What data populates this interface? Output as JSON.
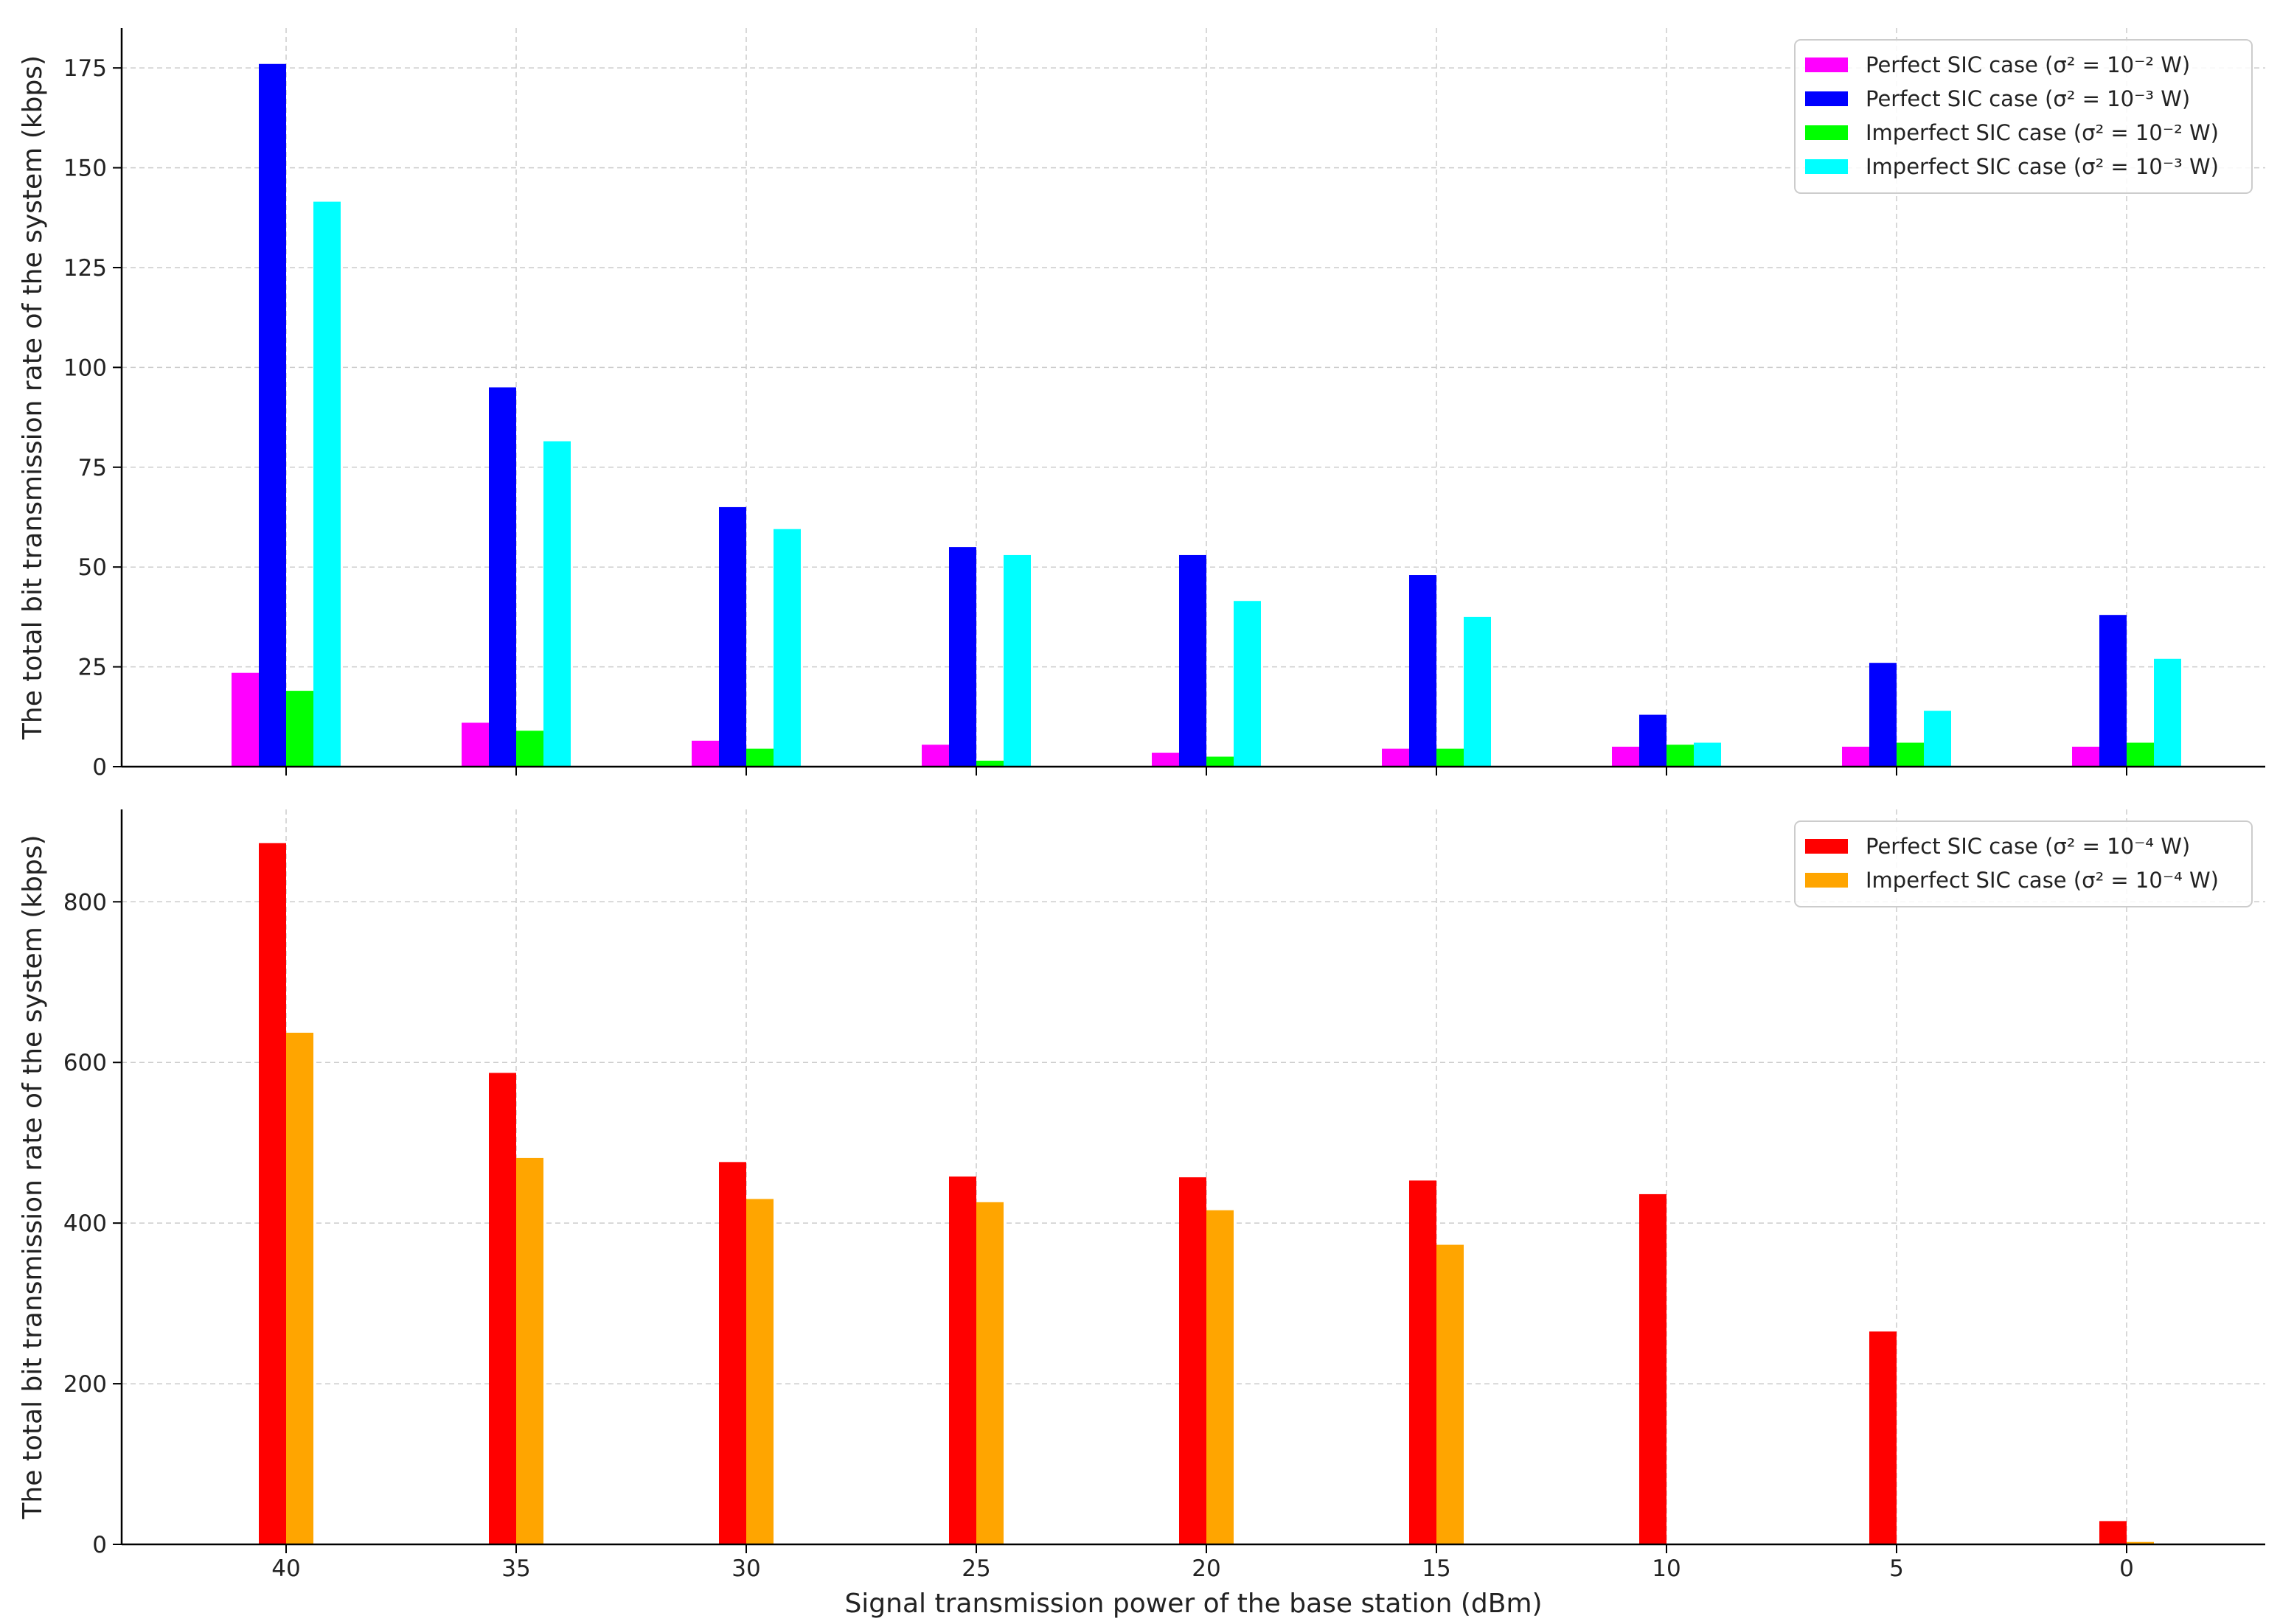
{
  "chart_data": [
    {
      "type": "bar",
      "categories": [
        "40",
        "35",
        "30",
        "25",
        "20",
        "15",
        "10",
        "5",
        "0"
      ],
      "xlabel": "",
      "ylabel": "The total bit transmission rate of the system (kbps)",
      "ylim": [
        0,
        185
      ],
      "yticks": [
        0,
        25,
        50,
        75,
        100,
        125,
        150,
        175
      ],
      "grid": true,
      "legend_position": "top-right",
      "series": [
        {
          "name": "Perfect SIC case (σ² = 10⁻² W)",
          "color": "#ff00ff",
          "values": [
            23.5,
            11,
            6.5,
            5.5,
            3.5,
            4.5,
            5,
            5,
            5
          ]
        },
        {
          "name": "Perfect SIC case (σ² = 10⁻³ W)",
          "color": "#0000ff",
          "values": [
            176,
            95,
            65,
            55,
            53,
            48,
            13,
            26,
            38
          ]
        },
        {
          "name": "Imperfect SIC case (σ² = 10⁻² W)",
          "color": "#00ff00",
          "values": [
            19,
            9,
            4.5,
            1.5,
            2.5,
            4.5,
            5.5,
            6,
            6
          ]
        },
        {
          "name": "Imperfect SIC case (σ² = 10⁻³ W)",
          "color": "#00ffff",
          "values": [
            141.5,
            81.5,
            59.5,
            53,
            41.5,
            37.5,
            6,
            14,
            27
          ]
        }
      ]
    },
    {
      "type": "bar",
      "categories": [
        "40",
        "35",
        "30",
        "25",
        "20",
        "15",
        "10",
        "5",
        "0"
      ],
      "xlabel": "Signal transmission power of the base station (dBm)",
      "ylabel": "The total bit transmission rate of the system (kbps)",
      "ylim": [
        0,
        915
      ],
      "yticks": [
        0,
        200,
        400,
        600,
        800
      ],
      "grid": true,
      "legend_position": "top-right",
      "series": [
        {
          "name": "Perfect SIC case (σ² = 10⁻⁴ W)",
          "color": "#ff0000",
          "values": [
            873,
            587,
            476,
            458,
            457,
            453,
            436,
            265,
            29
          ]
        },
        {
          "name": "Imperfect SIC case (σ² = 10⁻⁴ W)",
          "color": "#ffa500",
          "values": [
            637,
            481,
            430,
            426,
            416,
            373,
            0,
            0,
            3
          ]
        }
      ]
    }
  ],
  "colors": {
    "axis": "#000000",
    "grid": "#cccccc",
    "legend_border": "#cccccc"
  }
}
